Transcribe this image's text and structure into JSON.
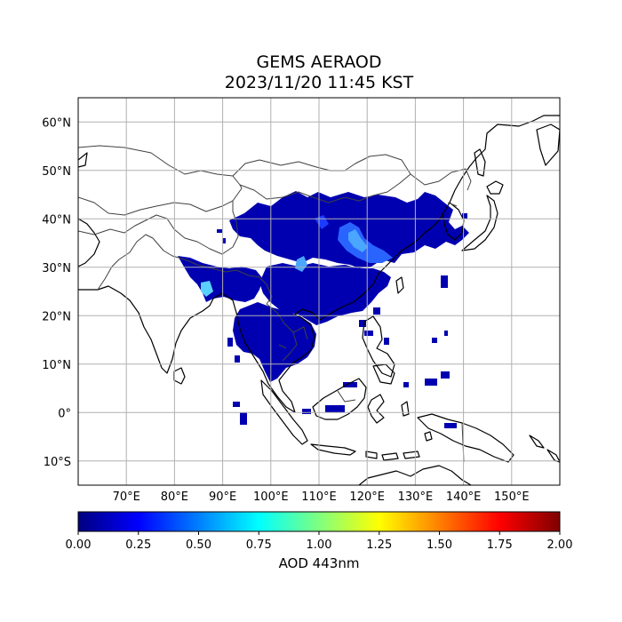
{
  "figure": {
    "title_line1": "GEMS AERAOD",
    "title_line2": "2023/11/20 11:45 KST"
  },
  "map": {
    "lon_range": [
      60,
      160
    ],
    "lat_range": [
      -15,
      65
    ],
    "lon_ticks": [
      70,
      80,
      90,
      100,
      110,
      120,
      130,
      140,
      150
    ],
    "lon_tick_labels": [
      "70°E",
      "80°E",
      "90°E",
      "100°E",
      "110°E",
      "120°E",
      "130°E",
      "140°E",
      "150°E"
    ],
    "lat_ticks": [
      60,
      50,
      40,
      30,
      20,
      10,
      0,
      -10
    ],
    "lat_tick_labels": [
      "60°N",
      "50°N",
      "40°N",
      "30°N",
      "20°N",
      "10°N",
      "0°",
      "10°S"
    ],
    "grid": true,
    "projection": "PlateCarree"
  },
  "colorbar": {
    "label": "AOD 443nm",
    "range": [
      0.0,
      2.0
    ],
    "ticks": [
      0.0,
      0.25,
      0.5,
      0.75,
      1.0,
      1.25,
      1.5,
      1.75,
      2.0
    ],
    "tick_labels": [
      "0.00",
      "0.25",
      "0.50",
      "0.75",
      "1.00",
      "1.25",
      "1.50",
      "1.75",
      "2.00"
    ],
    "colormap": "jet",
    "stops": [
      "#00007f",
      "#0000ff",
      "#007fff",
      "#00ffff",
      "#7fff7f",
      "#ffff00",
      "#ff7f00",
      "#ff0000",
      "#7f0000"
    ]
  },
  "colors": {
    "coastline": "#000000",
    "borders": "#404040",
    "grid": "#b0b0b0",
    "aod_low": "#0000b0",
    "aod_mid": "#1c3cff",
    "aod_high": "#4aa6ff"
  }
}
